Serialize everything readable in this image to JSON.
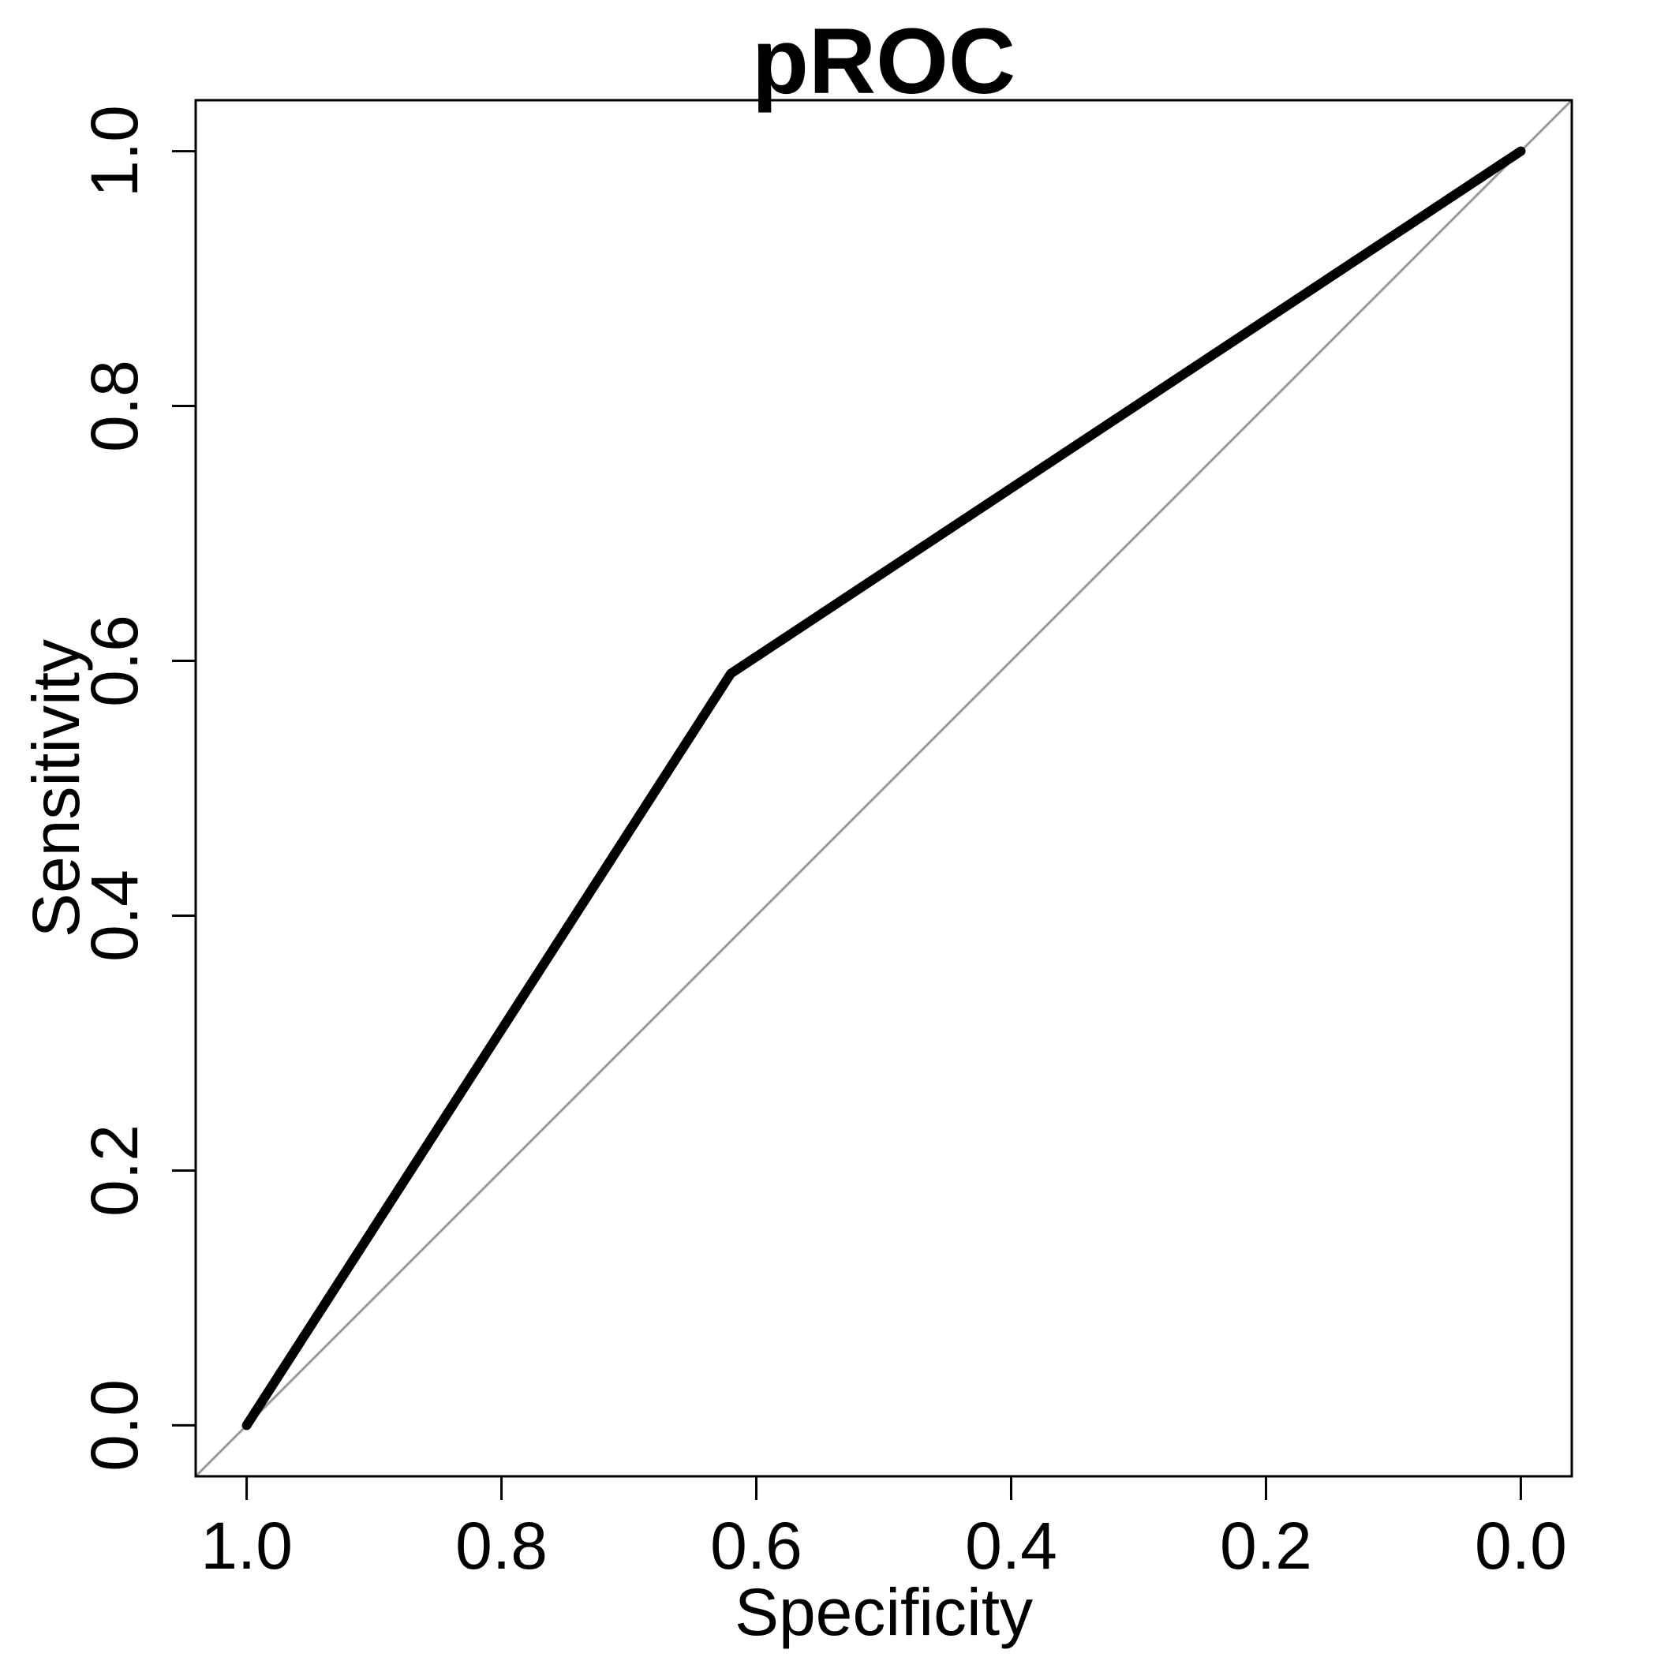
{
  "chart_data": {
    "type": "line",
    "title": "pROC",
    "xlabel": "Specificity",
    "ylabel": "Sensitivity",
    "x_reversed": true,
    "xlim": [
      1.04,
      -0.04
    ],
    "ylim": [
      -0.04,
      1.04
    ],
    "x_ticks": [
      1.0,
      0.8,
      0.6,
      0.4,
      0.2,
      0.0
    ],
    "x_tick_labels": [
      "1.0",
      "0.8",
      "0.6",
      "0.4",
      "0.2",
      "0.0"
    ],
    "y_ticks": [
      0.0,
      0.2,
      0.4,
      0.6,
      0.8,
      1.0
    ],
    "y_tick_labels": [
      "0.0",
      "0.2",
      "0.4",
      "0.6",
      "0.8",
      "1.0"
    ],
    "grid": false,
    "legend": "none",
    "series": [
      {
        "x": [
          1.0,
          0.62,
          0.0
        ],
        "y": [
          0.0,
          0.59,
          1.0
        ],
        "color": "#000000"
      }
    ],
    "reference_line": {
      "x": [
        1.04,
        -0.04
      ],
      "y": [
        -0.04,
        1.04
      ],
      "color": "#999999"
    }
  }
}
